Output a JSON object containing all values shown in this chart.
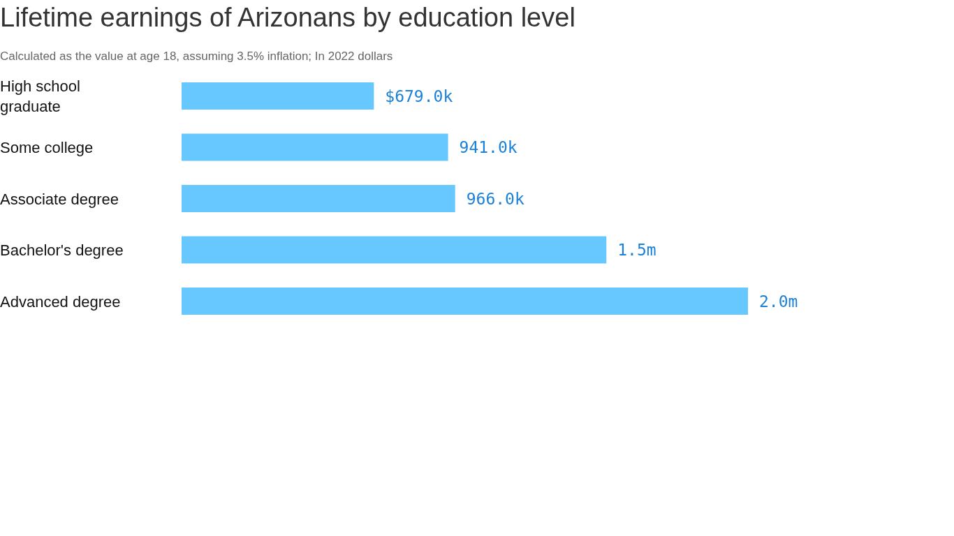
{
  "chart_data": {
    "type": "bar",
    "orientation": "horizontal",
    "title": "Lifetime earnings of Arizonans by education level",
    "subtitle": "Calculated as the value at age 18, assuming 3.5% inflation; In 2022 dollars",
    "categories": [
      "High school graduate",
      "Some college",
      "Associate degree",
      "Bachelor's degree",
      "Advanced degree"
    ],
    "values": [
      679000,
      941000,
      966000,
      1500000,
      2000000
    ],
    "value_labels": [
      "$679.0k",
      "941.0k",
      "966.0k",
      "1.5m",
      "2.0m"
    ],
    "color": "#66c8ff"
  }
}
